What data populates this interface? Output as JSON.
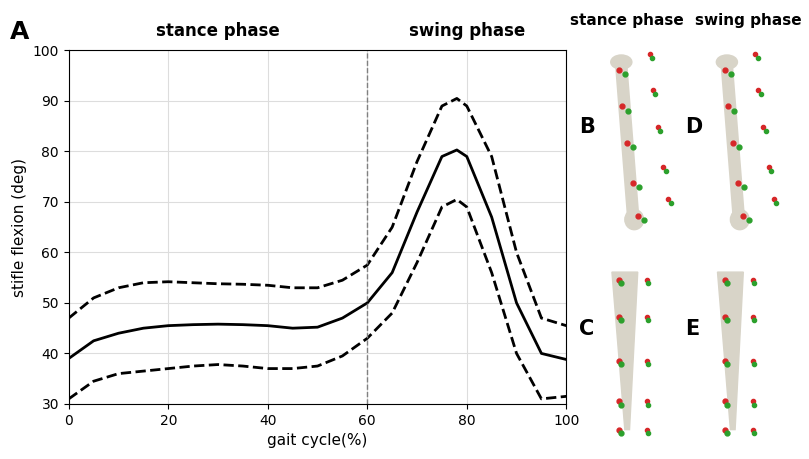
{
  "chart_data": {
    "type": "line",
    "panel_label": "A",
    "x_label": "gait cycle(%)",
    "y_label": "stifle flexion (deg)",
    "x": [
      0,
      5,
      10,
      15,
      20,
      25,
      30,
      35,
      40,
      45,
      50,
      55,
      60,
      65,
      70,
      75,
      78,
      80,
      85,
      90,
      95,
      100
    ],
    "series": [
      {
        "color": "#000000",
        "line_style": "solid",
        "values": [
          39,
          42.5,
          44,
          45,
          45.5,
          45.7,
          45.8,
          45.7,
          45.5,
          45,
          45.2,
          47,
          50,
          56,
          68,
          79,
          80.3,
          79,
          67,
          50,
          40,
          38.8
        ]
      },
      {
        "color": "#000000",
        "line_style": "dashed",
        "values": [
          47,
          51,
          53,
          54,
          54.2,
          54,
          53.8,
          53.7,
          53.5,
          53,
          53,
          54.5,
          57.5,
          65,
          78,
          89,
          90.5,
          89,
          79,
          60,
          47,
          45.5
        ]
      },
      {
        "color": "#000000",
        "line_style": "dashed",
        "values": [
          31,
          34.5,
          36,
          36.5,
          37,
          37.5,
          37.8,
          37.5,
          37,
          37,
          37.5,
          39.5,
          43,
          48,
          58,
          69,
          70.5,
          69,
          56,
          40,
          31,
          31.5
        ]
      }
    ],
    "phase_boundary": 60,
    "phase_titles": [
      "stance phase",
      "swing phase"
    ],
    "xlim": [
      0,
      100
    ],
    "xticks": [
      0,
      20,
      40,
      60,
      80,
      100
    ],
    "ylim": [
      30,
      100
    ],
    "yticks": [
      30,
      40,
      50,
      60,
      70,
      80,
      90,
      100
    ],
    "grid": true
  },
  "bone_panels": [
    {
      "title": "stance phase",
      "panels": [
        "B",
        "C"
      ]
    },
    {
      "title": "swing phase",
      "panels": [
        "D",
        "E"
      ]
    }
  ]
}
